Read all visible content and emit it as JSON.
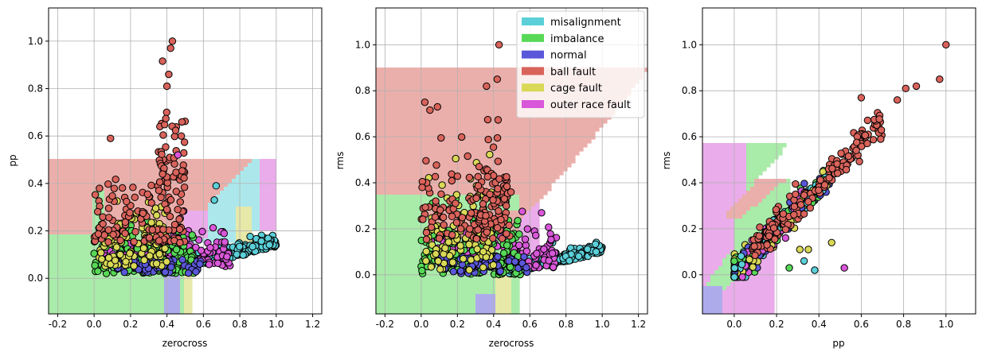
{
  "legend": {
    "placement": "upper-right of middle panel",
    "entries": [
      {
        "label": "misalignment",
        "color": "#5bd0d9"
      },
      {
        "label": "imbalance",
        "color": "#57d957"
      },
      {
        "label": "normal",
        "color": "#5b57d9"
      },
      {
        "label": "ball fault",
        "color": "#d9635b"
      },
      {
        "label": "cage fault",
        "color": "#d9d957"
      },
      {
        "label": "outer race fault",
        "color": "#d957d9"
      }
    ]
  },
  "region_colors": {
    "misalignment": "#ace8eb",
    "imbalance": "#a9eba9",
    "normal": "#aeabeb",
    "ball fault": "#ebafab",
    "cage fault": "#e6e9a8",
    "outer race fault": "#eaacea"
  },
  "point_colors": {
    "misalignment": "#5bd0d9",
    "imbalance": "#57d957",
    "normal": "#5b57d9",
    "ball fault": "#d9635b",
    "cage fault": "#d9d957",
    "outer race fault": "#d957d9"
  },
  "chart_data": [
    {
      "type": "scatter",
      "xlabel": "zerocross",
      "ylabel": "pp",
      "xlim": [
        -0.25,
        1.25
      ],
      "ylim": [
        -0.15,
        1.14
      ],
      "xticks": [
        "-0.2",
        "0.0",
        "0.2",
        "0.4",
        "0.6",
        "0.8",
        "1.0",
        "1.2"
      ],
      "xtick_values": [
        -0.2,
        0.0,
        0.2,
        0.4,
        0.6,
        0.8,
        1.0,
        1.2
      ],
      "yticks": [
        "0.0",
        "0.2",
        "0.4",
        "0.6",
        "0.8",
        "1.0"
      ],
      "ytick_values": [
        0.0,
        0.2,
        0.4,
        0.6,
        0.8,
        1.0
      ],
      "grid": true,
      "background": "decision regions per class"
    },
    {
      "type": "scatter",
      "xlabel": "zerocross",
      "ylabel": "rms",
      "xlim": [
        -0.25,
        1.25
      ],
      "ylim": [
        -0.17,
        1.16
      ],
      "xticks": [
        "-0.2",
        "0.0",
        "0.2",
        "0.4",
        "0.6",
        "0.8",
        "1.0",
        "1.2"
      ],
      "xtick_values": [
        -0.2,
        0.0,
        0.2,
        0.4,
        0.6,
        0.8,
        1.0,
        1.2
      ],
      "yticks": [
        "0.0",
        "0.2",
        "0.4",
        "0.6",
        "0.8",
        "1.0"
      ],
      "ytick_values": [
        0.0,
        0.2,
        0.4,
        0.6,
        0.8,
        1.0
      ],
      "grid": true,
      "background": "decision regions per class",
      "legend": true
    },
    {
      "type": "scatter",
      "xlabel": "pp",
      "ylabel": "rms",
      "xlim": [
        -0.15,
        1.14
      ],
      "ylim": [
        -0.17,
        1.16
      ],
      "xticks": [
        "0.0",
        "0.2",
        "0.4",
        "0.6",
        "0.8",
        "1.0"
      ],
      "xtick_values": [
        0.0,
        0.2,
        0.4,
        0.6,
        0.8,
        1.0
      ],
      "yticks": [
        "0.0",
        "0.2",
        "0.4",
        "0.6",
        "0.8",
        "1.0"
      ],
      "ytick_values": [
        0.0,
        0.2,
        0.4,
        0.6,
        0.8,
        1.0
      ],
      "grid": true,
      "background": "decision regions per class"
    }
  ]
}
